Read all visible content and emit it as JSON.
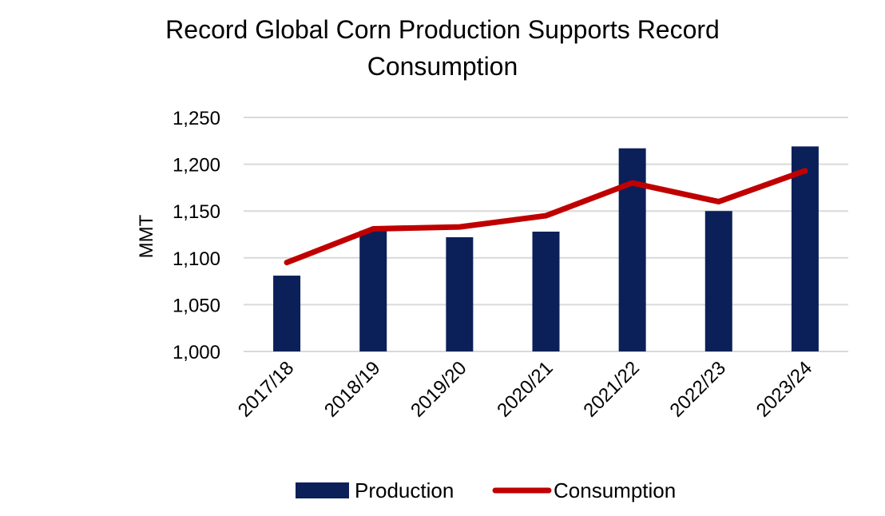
{
  "chart_data": {
    "type": "bar",
    "title_lines": [
      "Record Global Corn Production Supports Record",
      "Consumption"
    ],
    "xlabel": "",
    "ylabel": "MMT",
    "categories": [
      "2017/18",
      "2018/19",
      "2019/20",
      "2020/21",
      "2021/22",
      "2022/23",
      "2023/24"
    ],
    "series": [
      {
        "name": "Production",
        "type": "bar",
        "color": "#0b2059",
        "values": [
          1081,
          1129,
          1122,
          1128,
          1217,
          1150,
          1219
        ]
      },
      {
        "name": "Consumption",
        "type": "line",
        "color": "#c00000",
        "values": [
          1095,
          1131,
          1133,
          1145,
          1180,
          1160,
          1193
        ]
      }
    ],
    "ylim": [
      1000,
      1250
    ],
    "yticks": [
      1000,
      1050,
      1100,
      1150,
      1200,
      1250
    ],
    "ytick_labels": [
      "1,000",
      "1,050",
      "1,100",
      "1,150",
      "1,200",
      "1,250"
    ],
    "grid": true,
    "legend_position": "bottom"
  }
}
